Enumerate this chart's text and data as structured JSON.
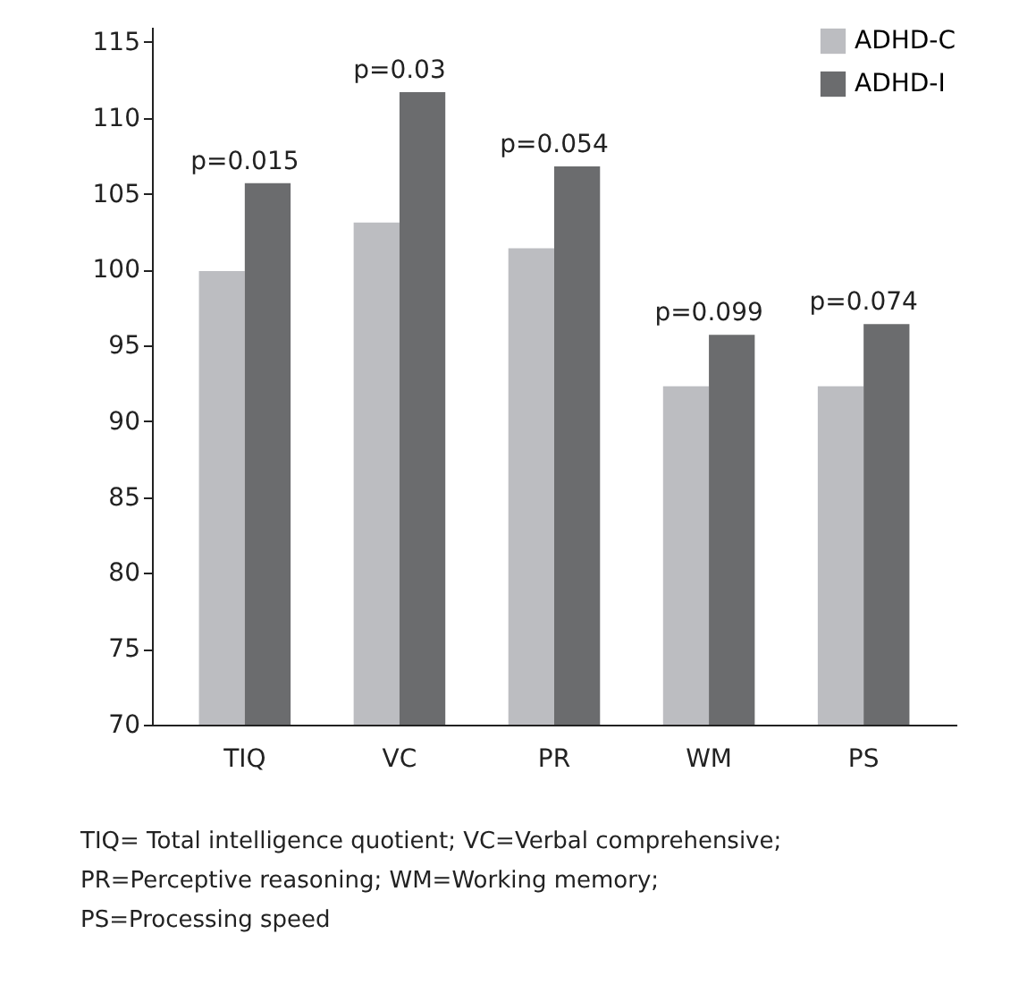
{
  "chart_data": {
    "type": "bar",
    "categories": [
      "TIQ",
      "VC",
      "PR",
      "WM",
      "PS"
    ],
    "series": [
      {
        "name": "ADHD-C",
        "color": "#bcbdc1",
        "values": [
          99.9,
          103.1,
          101.4,
          92.3,
          92.3
        ]
      },
      {
        "name": "ADHD-I",
        "color": "#6b6c6e",
        "values": [
          105.7,
          111.7,
          106.8,
          95.7,
          96.4
        ]
      }
    ],
    "ylim": [
      70,
      116
    ],
    "yticks": [
      70,
      75,
      80,
      85,
      90,
      95,
      100,
      105,
      110,
      115
    ],
    "grid": false,
    "legend": "top right",
    "annotations": [
      {
        "text": "p=0.015",
        "x": "TIQ",
        "y": 105.7
      },
      {
        "text": "p=0.03",
        "x": "VC",
        "y": 111.7
      },
      {
        "text": "p=0.054",
        "x": "PR",
        "y": 106.8
      },
      {
        "text": "p=0.099",
        "x": "WM",
        "y": 95.7
      },
      {
        "text": "p=0.074",
        "x": "PS",
        "y": 96.4
      },
      "TIQ= Total intelligence quotient; VC=Verbal comprehensive;",
      "PR=Perceptive reasoning; WM=Working memory;",
      "PS=Processing speed"
    ]
  }
}
